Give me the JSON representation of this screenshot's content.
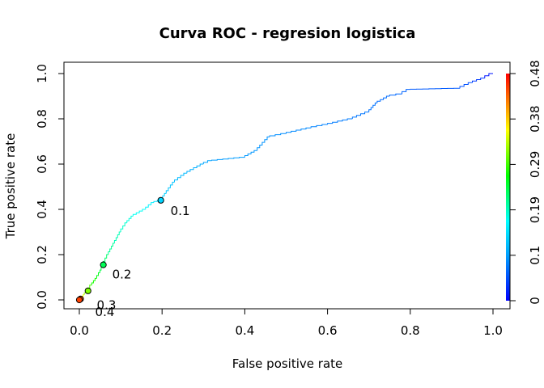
{
  "chart_data": {
    "type": "line",
    "title": "Curva ROC - regresion logistica",
    "xlabel": "False positive rate",
    "ylabel": "True positive rate",
    "xlim": [
      0,
      1
    ],
    "ylim": [
      0,
      1
    ],
    "x_ticks": [
      "0.0",
      "0.2",
      "0.4",
      "0.6",
      "0.8",
      "1.0"
    ],
    "y_ticks": [
      "0.0",
      "0.2",
      "0.4",
      "0.6",
      "0.8",
      "1.0"
    ],
    "grid": false,
    "colorbar": {
      "ticks": [
        "0",
        "0.1",
        "0.19",
        "0.29",
        "0.38",
        "0.48"
      ],
      "min": 0,
      "max": 0.48,
      "palette": "rainbow (blue to red)"
    },
    "cutoff_labels": [
      {
        "label": "0.1",
        "x": 0.197,
        "y": 0.44
      },
      {
        "label": "0.2",
        "x": 0.058,
        "y": 0.155
      },
      {
        "label": "0.3",
        "x": 0.003,
        "y": 0.001
      },
      {
        "label": "0.4",
        "x": 0.003,
        "y": 0.0
      }
    ],
    "cutoff_points": [
      {
        "x": 0.197,
        "y": 0.44
      },
      {
        "x": 0.058,
        "y": 0.155
      },
      {
        "x": 0.021,
        "y": 0.04
      },
      {
        "x": 0.003,
        "y": 0.004
      },
      {
        "x": 0.0,
        "y": 0.0
      }
    ],
    "curve": [
      {
        "x": 0.0,
        "y": 0.0,
        "t": 0.48
      },
      {
        "x": 0.003,
        "y": 0.003,
        "t": 0.42
      },
      {
        "x": 0.006,
        "y": 0.01,
        "t": 0.38
      },
      {
        "x": 0.012,
        "y": 0.022,
        "t": 0.33
      },
      {
        "x": 0.02,
        "y": 0.04,
        "t": 0.29
      },
      {
        "x": 0.03,
        "y": 0.065,
        "t": 0.26
      },
      {
        "x": 0.042,
        "y": 0.095,
        "t": 0.24
      },
      {
        "x": 0.05,
        "y": 0.12,
        "t": 0.22
      },
      {
        "x": 0.058,
        "y": 0.155,
        "t": 0.2
      },
      {
        "x": 0.07,
        "y": 0.2,
        "t": 0.18
      },
      {
        "x": 0.085,
        "y": 0.25,
        "t": 0.16
      },
      {
        "x": 0.1,
        "y": 0.3,
        "t": 0.15
      },
      {
        "x": 0.115,
        "y": 0.34,
        "t": 0.14
      },
      {
        "x": 0.13,
        "y": 0.37,
        "t": 0.13
      },
      {
        "x": 0.16,
        "y": 0.4,
        "t": 0.12
      },
      {
        "x": 0.18,
        "y": 0.43,
        "t": 0.11
      },
      {
        "x": 0.197,
        "y": 0.44,
        "t": 0.1
      },
      {
        "x": 0.21,
        "y": 0.47,
        "t": 0.095
      },
      {
        "x": 0.23,
        "y": 0.52,
        "t": 0.09
      },
      {
        "x": 0.26,
        "y": 0.56,
        "t": 0.085
      },
      {
        "x": 0.3,
        "y": 0.6,
        "t": 0.08
      },
      {
        "x": 0.32,
        "y": 0.615,
        "t": 0.075
      },
      {
        "x": 0.4,
        "y": 0.63,
        "t": 0.072
      },
      {
        "x": 0.43,
        "y": 0.66,
        "t": 0.07
      },
      {
        "x": 0.46,
        "y": 0.72,
        "t": 0.068
      },
      {
        "x": 0.5,
        "y": 0.735,
        "t": 0.066
      },
      {
        "x": 0.56,
        "y": 0.76,
        "t": 0.063
      },
      {
        "x": 0.6,
        "y": 0.775,
        "t": 0.06
      },
      {
        "x": 0.66,
        "y": 0.8,
        "t": 0.057
      },
      {
        "x": 0.7,
        "y": 0.83,
        "t": 0.055
      },
      {
        "x": 0.72,
        "y": 0.87,
        "t": 0.052
      },
      {
        "x": 0.75,
        "y": 0.9,
        "t": 0.05
      },
      {
        "x": 0.78,
        "y": 0.91,
        "t": 0.048
      },
      {
        "x": 0.8,
        "y": 0.93,
        "t": 0.045
      },
      {
        "x": 0.92,
        "y": 0.935,
        "t": 0.04
      },
      {
        "x": 0.95,
        "y": 0.96,
        "t": 0.035
      },
      {
        "x": 0.98,
        "y": 0.98,
        "t": 0.02
      },
      {
        "x": 1.0,
        "y": 1.0,
        "t": 0.0
      }
    ]
  }
}
